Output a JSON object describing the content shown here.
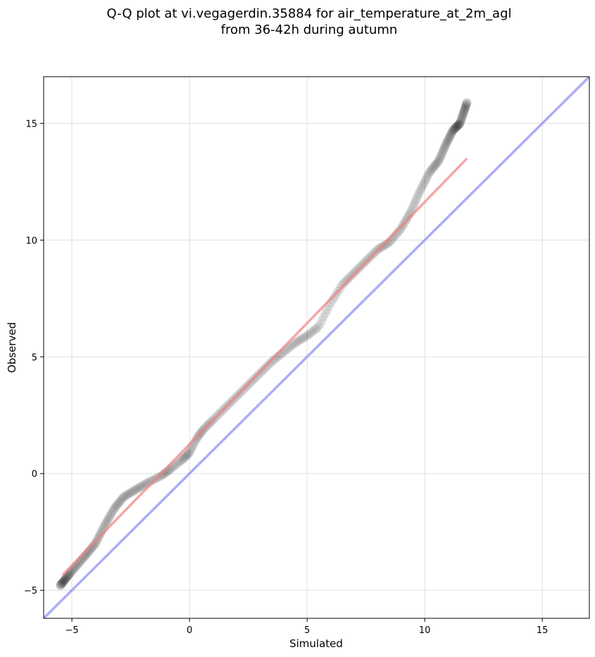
{
  "chart_data": {
    "type": "scatter",
    "title_line1": "Q-Q plot at vi.vegagerdin.35884 for air_temperature_at_2m_agl",
    "title_line2": "from 36-42h during autumn",
    "xlabel": "Simulated",
    "ylabel": "Observed",
    "xlim": [
      -6.2,
      17.0
    ],
    "ylim": [
      -6.2,
      17.0
    ],
    "xticks": [
      -5,
      0,
      5,
      10,
      15
    ],
    "yticks": [
      -5,
      0,
      5,
      10,
      15
    ],
    "xtick_labels": [
      "−5",
      "0",
      "5",
      "10",
      "15"
    ],
    "ytick_labels": [
      "−5",
      "0",
      "5",
      "10",
      "15"
    ],
    "grid": true,
    "colors": {
      "points": "#000000",
      "fit_line": "#f08080",
      "identity_line": "#8080f0"
    },
    "identity_line": {
      "x": [
        -6.2,
        17.0
      ],
      "y": [
        -6.2,
        17.0
      ]
    },
    "fit_line": {
      "x": [
        -5.4,
        11.8
      ],
      "y": [
        -4.35,
        13.5
      ]
    },
    "quantile_anchors": {
      "x": [
        -5.5,
        -5.1,
        -4.5,
        -4.0,
        -3.6,
        -3.2,
        -2.8,
        -2.3,
        -1.8,
        -1.2,
        -0.8,
        -0.3,
        0.0,
        0.3,
        0.6,
        1.0,
        1.5,
        2.0,
        2.5,
        3.0,
        3.5,
        4.0,
        4.5,
        5.0,
        5.5,
        6.0,
        6.5,
        7.0,
        7.5,
        8.0,
        8.5,
        9.0,
        9.4,
        9.8,
        10.2,
        10.6,
        10.9,
        11.2,
        11.5,
        11.8
      ],
      "y": [
        -4.8,
        -4.3,
        -3.6,
        -3.0,
        -2.2,
        -1.5,
        -1.0,
        -0.7,
        -0.4,
        -0.1,
        0.2,
        0.6,
        0.9,
        1.5,
        1.9,
        2.3,
        2.8,
        3.3,
        3.8,
        4.3,
        4.8,
        5.2,
        5.6,
        5.9,
        6.3,
        7.3,
        8.1,
        8.6,
        9.1,
        9.6,
        9.9,
        10.5,
        11.2,
        12.1,
        12.9,
        13.4,
        14.1,
        14.7,
        15.0,
        15.9
      ]
    },
    "n_points": 330
  }
}
